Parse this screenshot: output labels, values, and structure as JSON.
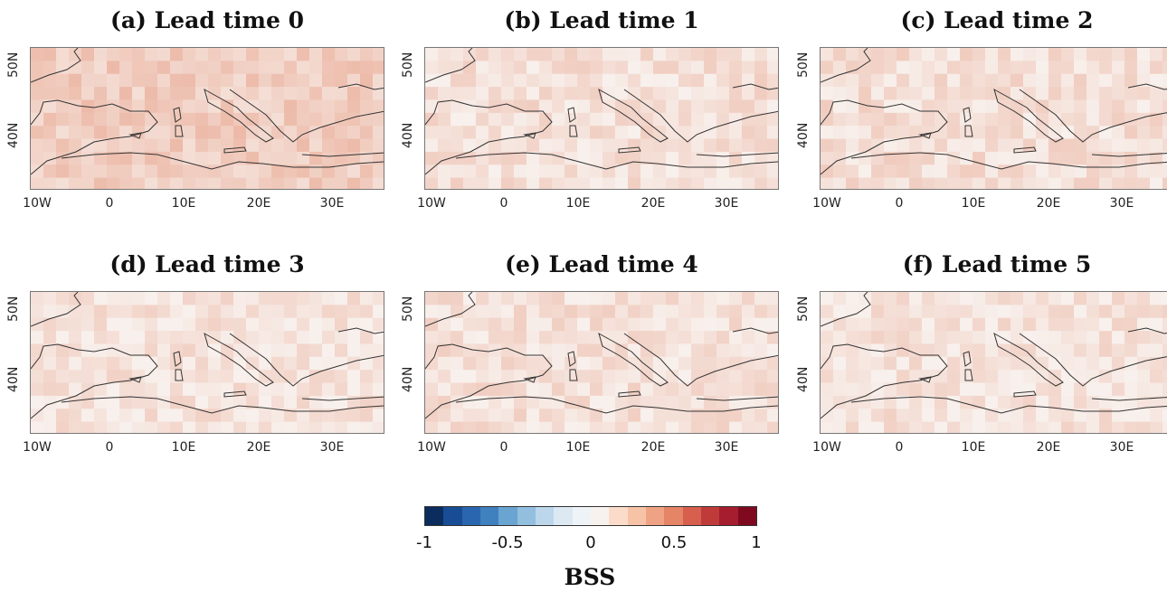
{
  "panels": [
    {
      "title": "(a) Lead time 0",
      "intensity": 0.34
    },
    {
      "title": "(b) Lead time 1",
      "intensity": 0.16
    },
    {
      "title": "(c) Lead time 2",
      "intensity": 0.17
    },
    {
      "title": "(d) Lead time 3",
      "intensity": 0.12
    },
    {
      "title": "(e) Lead time 4",
      "intensity": 0.15
    },
    {
      "title": "(f) Lead time 5",
      "intensity": 0.12
    }
  ],
  "axes": {
    "lat_ticks": [
      "50N",
      "40N"
    ],
    "lon_ticks": [
      "10W",
      "0",
      "10E",
      "20E",
      "30E"
    ]
  },
  "colorbar": {
    "label": "BSS",
    "ticks": [
      "-1",
      "-0.5",
      "0",
      "0.5",
      "1"
    ],
    "colors": [
      "#0b2d5e",
      "#184d96",
      "#2a66b0",
      "#3f80bf",
      "#6aa4d0",
      "#93bfdf",
      "#bcd7eb",
      "#dce9f3",
      "#eef3f7",
      "#f8f2ee",
      "#fbdccb",
      "#f6c3a7",
      "#f0a384",
      "#e58466",
      "#d65f4d",
      "#bf3b3a",
      "#a61d2f",
      "#7f0a1f"
    ]
  }
}
